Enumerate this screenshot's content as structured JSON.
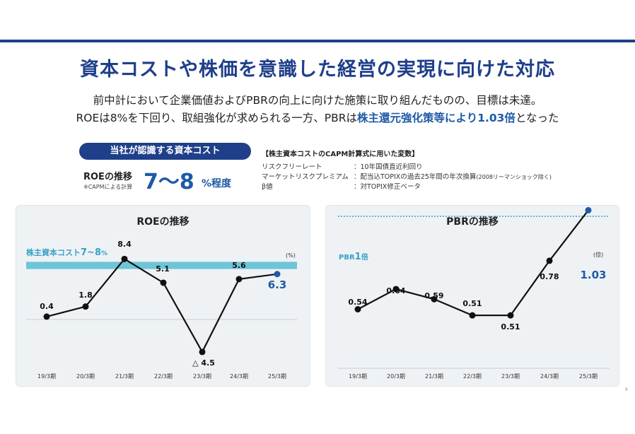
{
  "title": "資本コストや株価を意識した経営の実現に向けた対応",
  "subtitle": {
    "line1": "前中計において企業価値およびPBRの向上に向けた施策に取り組んだものの、目標は未達。",
    "line2_a": "ROEは8%を下回り、取組強化が求められる一方、PBRは",
    "line2_b": "株主還元強化策等により1.03倍",
    "line2_c": "となった"
  },
  "cost_box": {
    "badge": "当社が認識する資本コスト",
    "roe_label": "ROEの推移",
    "note": "※CAPMによる計算",
    "range": "7～8",
    "unit": "%程度"
  },
  "capm": {
    "title": "【株主資本コストのCAPM計算式に用いた変数】",
    "rows": [
      {
        "label": "リスクフリーレート",
        "value": "：10年国債直近利回り",
        "small": ""
      },
      {
        "label": "マーケットリスクプレミアム",
        "value": "：配当込TOPIXの過去25年間の年次換算",
        "small": "(2008リーマンショック除く)"
      },
      {
        "label": "β値",
        "value": "：対TOPIX修正ベータ",
        "small": ""
      }
    ]
  },
  "colors": {
    "brand": "#1f3f8a",
    "accent": "#1f5aa6",
    "band": "#6ec5d7",
    "line": "#111111"
  },
  "page_number": "8",
  "chart_data": [
    {
      "type": "line",
      "title": "ROEの推移",
      "categories": [
        "19/3期",
        "20/3期",
        "21/3期",
        "22/3期",
        "23/3期",
        "24/3期",
        "25/3期"
      ],
      "values": [
        0.4,
        1.8,
        8.4,
        5.1,
        -4.5,
        5.6,
        6.3
      ],
      "labels": [
        "0.4",
        "1.8",
        "8.4",
        "5.1",
        "△ 4.5",
        "5.6",
        "6.3"
      ],
      "unit_label": "(%)",
      "band": {
        "label_a": "株主資本コスト",
        "label_b": "7~8",
        "label_c": "%",
        "from": 7,
        "to": 8
      },
      "ylim": [
        -6,
        10
      ]
    },
    {
      "type": "line",
      "title": "PBRの推移",
      "categories": [
        "19/3期",
        "20/3期",
        "21/3期",
        "22/3期",
        "23/3期",
        "24/3期",
        "25/3期"
      ],
      "values": [
        0.54,
        0.64,
        0.59,
        0.51,
        0.51,
        0.78,
        1.03
      ],
      "labels": [
        "0.54",
        "0.64",
        "0.59",
        "0.51",
        "0.51",
        "0.78",
        "1.03"
      ],
      "unit_label": "(倍)",
      "reference": {
        "label_a": "PBR",
        "label_b": "1",
        "label_c": "倍",
        "value": 1.0
      },
      "ylim": [
        0.3,
        1.1
      ]
    }
  ]
}
